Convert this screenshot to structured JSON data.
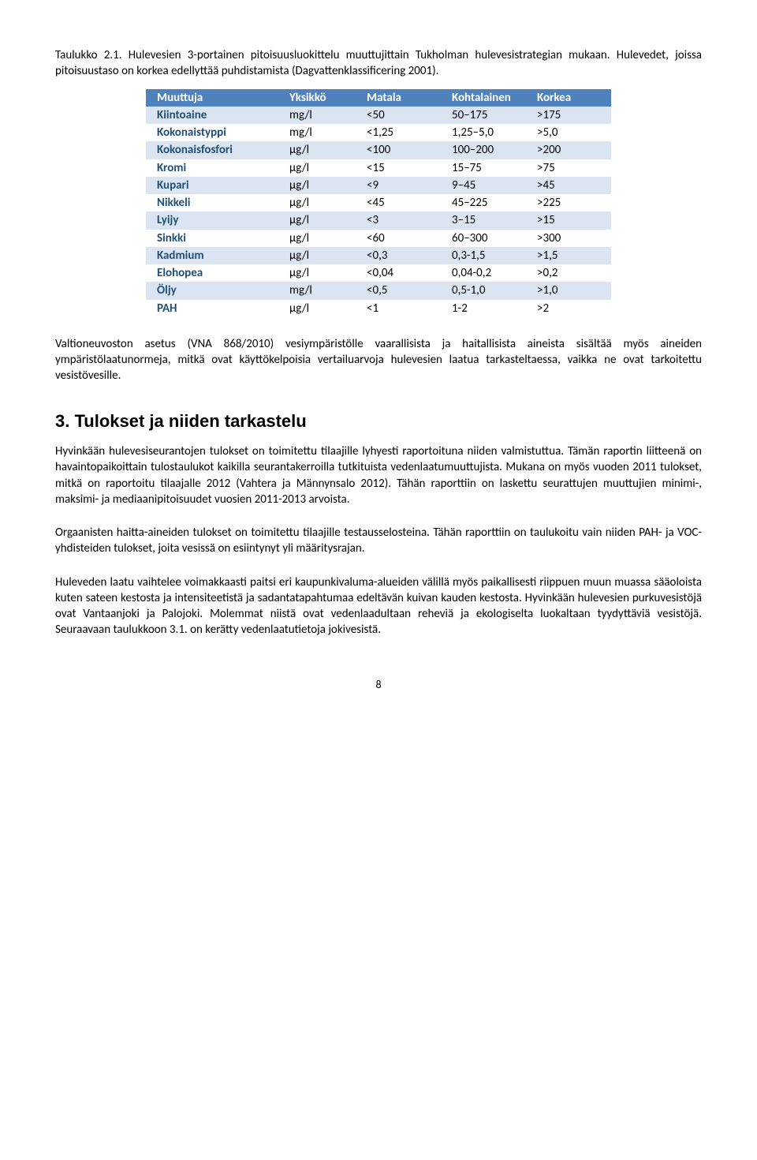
{
  "caption": "Taulukko 2.1. Hulevesien 3-portainen pitoisuusluokittelu muuttujittain Tukholman hulevesistrategian mukaan. Hulevedet, joissa pitoisuustaso on korkea edellyttää puhdistamista (Dagvattenklassificering 2001).",
  "table": {
    "header_bg": "#4f81bd",
    "row_alt_bg": "#dbe5f1",
    "row_bg": "#ffffff",
    "columns": [
      "Muuttuja",
      "Yksikkö",
      "Matala",
      "Kohtalainen",
      "Korkea"
    ],
    "rows": [
      [
        "Kiintoaine",
        "mg/l",
        "<50",
        "50–175",
        ">175"
      ],
      [
        "Kokonaistyppi",
        "mg/l",
        "<1,25",
        "1,25–5,0",
        ">5,0"
      ],
      [
        "Kokonaisfosfori",
        "µg/l",
        "<100",
        "100–200",
        ">200"
      ],
      [
        "Kromi",
        "µg/l",
        "<15",
        "15–75",
        ">75"
      ],
      [
        "Kupari",
        "µg/l",
        "<9",
        "9–45",
        ">45"
      ],
      [
        "Nikkeli",
        "µg/l",
        "<45",
        "45–225",
        ">225"
      ],
      [
        "Lyijy",
        "µg/l",
        "<3",
        "3–15",
        ">15"
      ],
      [
        "Sinkki",
        "µg/l",
        "<60",
        "60–300",
        ">300"
      ],
      [
        "Kadmium",
        "µg/l",
        "<0,3",
        "0,3-1,5",
        ">1,5"
      ],
      [
        "Elohopea",
        "µg/l",
        "<0,04",
        "0,04-0,2",
        ">0,2"
      ],
      [
        "Öljy",
        "mg/l",
        "<0,5",
        "0,5-1,0",
        ">1,0"
      ],
      [
        "PAH",
        "µg/l",
        "<1",
        "1-2",
        ">2"
      ]
    ]
  },
  "para1": "Valtioneuvoston asetus (VNA 868/2010) vesiympäristölle vaarallisista ja haitallisista aineista sisältää myös aineiden ympäristölaatunormeja, mitkä ovat käyttökelpoisia vertailuarvoja hulevesien laatua tarkasteltaessa, vaikka ne ovat tarkoitettu vesistövesille.",
  "section_heading": "3. Tulokset ja niiden tarkastelu",
  "para2": "Hyvinkään hulevesiseurantojen tulokset on toimitettu tilaajille lyhyesti raportoituna niiden valmistuttua. Tämän raportin liitteenä on havaintopaikoittain tulostaulukot kaikilla seurantakerroilla tutkituista vedenlaatumuuttujista. Mukana on myös vuoden 2011 tulokset, mitkä on raportoitu tilaajalle 2012 (Vahtera ja Männynsalo 2012). Tähän raporttiin on laskettu seurattujen muuttujien minimi-, maksimi- ja mediaanipitoisuudet vuosien 2011-2013 arvoista.",
  "para3": "Orgaanisten haitta-aineiden tulokset on toimitettu tilaajille testausselosteina. Tähän raporttiin on taulukoitu vain niiden PAH- ja VOC-yhdisteiden tulokset, joita vesissä on esiintynyt yli määritysrajan.",
  "para4": "Huleveden laatu vaihtelee voimakkaasti paitsi eri kaupunkivaluma-alueiden välillä myös paikallisesti riippuen muun muassa sääoloista kuten sateen kestosta ja intensiteetistä ja sadantatapahtumaa edeltävän kuivan kauden kestosta. Hyvinkään hulevesien purkuvesistöjä ovat Vantaanjoki ja Palojoki. Molemmat niistä ovat vedenlaadultaan reheviä ja ekologiselta luokaltaan tyydyttäviä vesistöjä. Seuraavaan taulukkoon 3.1. on kerätty vedenlaatutietoja jokivesistä.",
  "page_number": "8"
}
